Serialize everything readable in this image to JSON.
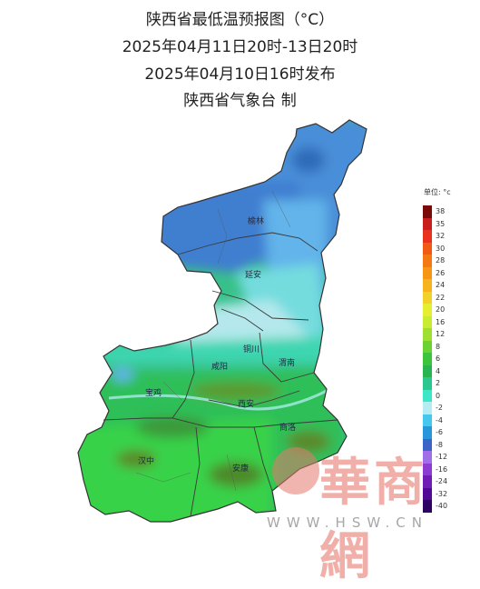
{
  "header": {
    "line1": "陕西省最低温预报图（°C）",
    "line2": "2025年04月11日20时-13日20时",
    "line3": "2025年04月10日16时发布",
    "line4": "陕西省气象台  制"
  },
  "cities": [
    "榆林",
    "延安",
    "铜川",
    "咸阳",
    "渭南",
    "宝鸡",
    "西安",
    "商洛",
    "汉中",
    "安康"
  ],
  "legend": {
    "unit": "单位: °c",
    "stops": [
      {
        "value": "38",
        "color": "#7a0a0a"
      },
      {
        "value": "35",
        "color": "#c81e1e"
      },
      {
        "value": "32",
        "color": "#e8321e"
      },
      {
        "value": "30",
        "color": "#f05a14"
      },
      {
        "value": "28",
        "color": "#f47814"
      },
      {
        "value": "26",
        "color": "#f79614"
      },
      {
        "value": "24",
        "color": "#f5b41e"
      },
      {
        "value": "22",
        "color": "#f2d22a"
      },
      {
        "value": "20",
        "color": "#e6ee32"
      },
      {
        "value": "16",
        "color": "#c8ec32"
      },
      {
        "value": "12",
        "color": "#9ee032"
      },
      {
        "value": "8",
        "color": "#6ad232"
      },
      {
        "value": "6",
        "color": "#3cc43c"
      },
      {
        "value": "4",
        "color": "#28b450"
      },
      {
        "value": "2",
        "color": "#2ac890"
      },
      {
        "value": "0",
        "color": "#3ce6c8"
      },
      {
        "value": "-2",
        "color": "#b4ecf2"
      },
      {
        "value": "-4",
        "color": "#46c8ee"
      },
      {
        "value": "-6",
        "color": "#2896dc"
      },
      {
        "value": "-8",
        "color": "#3c64c8"
      },
      {
        "value": "-12",
        "color": "#a06ee6"
      },
      {
        "value": "-16",
        "color": "#8c3cd2"
      },
      {
        "value": "-24",
        "color": "#6e1eb4"
      },
      {
        "value": "-32",
        "color": "#500a96"
      },
      {
        "value": "-40",
        "color": "#2d0064"
      }
    ]
  },
  "watermark": {
    "text": "華商網",
    "url": "WWW.HSW.CN"
  }
}
